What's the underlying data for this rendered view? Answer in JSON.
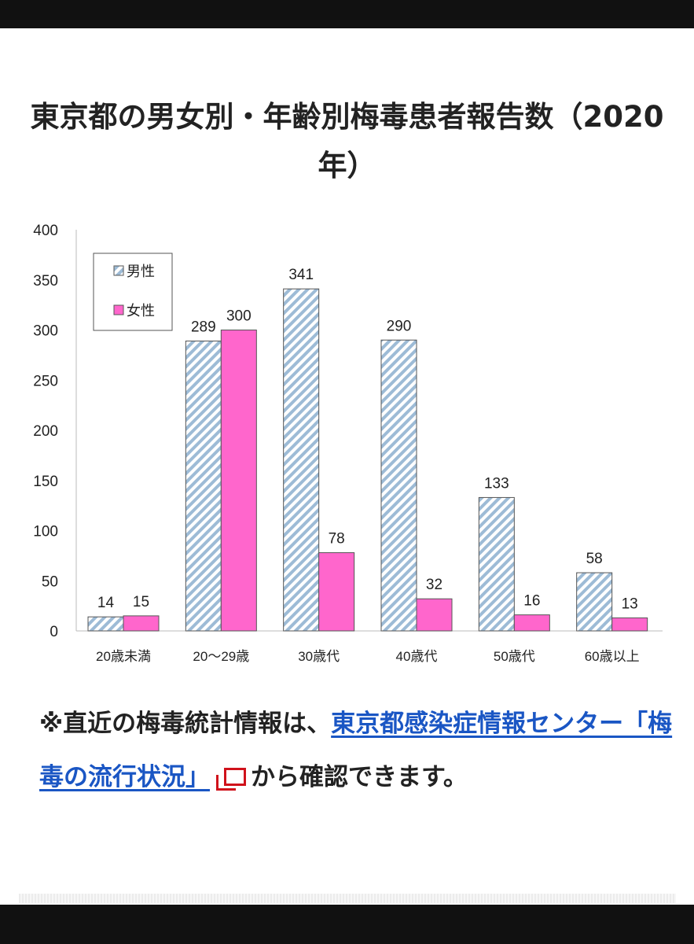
{
  "chart_data": {
    "type": "bar",
    "title": "東京都の男女別・年齢別梅毒患者報告数（2020年）",
    "categories": [
      "20歳未満",
      "20～29歳",
      "30歳代",
      "40歳代",
      "50歳代",
      "60歳以上"
    ],
    "series": [
      {
        "name": "男性",
        "values": [
          14,
          289,
          341,
          290,
          133,
          58
        ],
        "color": "#9dbbd6",
        "pattern": "diagonal-hatch"
      },
      {
        "name": "女性",
        "values": [
          15,
          300,
          78,
          32,
          16,
          13
        ],
        "color": "#ff66cc"
      }
    ],
    "ylim": [
      0,
      400
    ],
    "yticks": [
      "0",
      "50",
      "100",
      "150",
      "200",
      "250",
      "300",
      "350",
      "400"
    ],
    "legend_position": "top-left",
    "grid": false
  },
  "note": {
    "prefix": "※直近の梅毒統計情報は、",
    "link_text": "東京都感染症情報センター「梅毒の流行状況」",
    "suffix": "から確認できます。",
    "link_color": "#1a56c4",
    "icon": "external-window-icon"
  }
}
